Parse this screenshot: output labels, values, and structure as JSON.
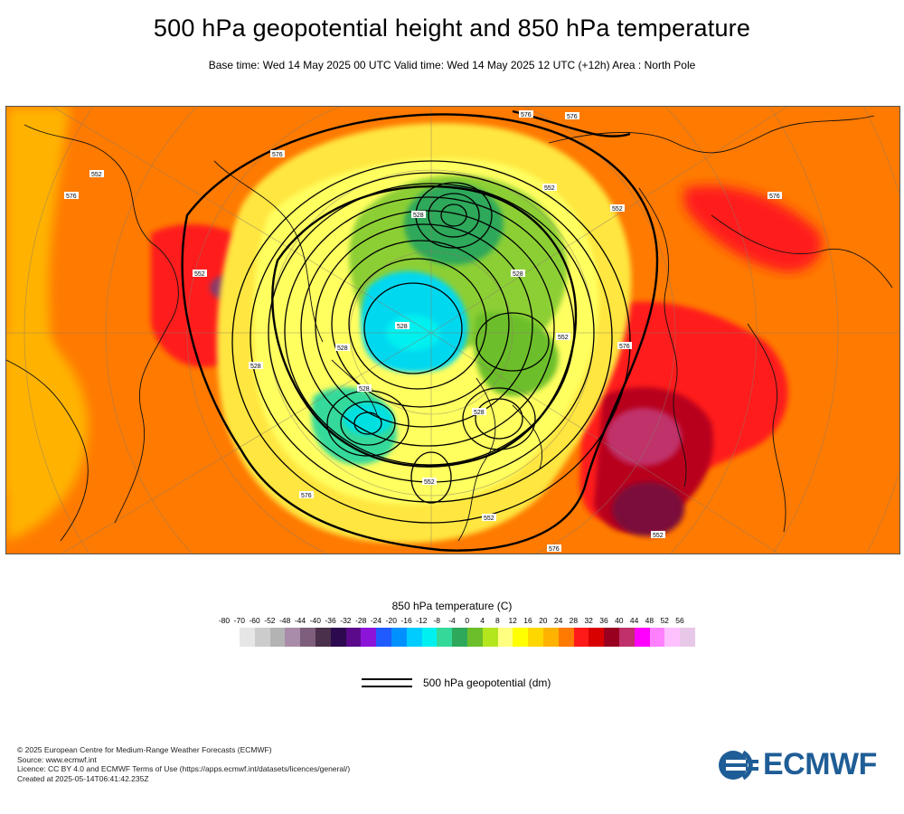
{
  "title": "500 hPa geopotential height and 850 hPa temperature",
  "subtitle": "Base time: Wed 14 May 2025 00 UTC Valid time: Wed 14 May 2025 12 UTC (+12h) Area : North Pole",
  "map": {
    "area": "North Pole",
    "contour_labels": [
      "576",
      "552",
      "528",
      "576",
      "552",
      "528",
      "576",
      "552",
      "528",
      "576",
      "552",
      "528",
      "576",
      "552",
      "528",
      "576",
      "552",
      "528",
      "576",
      "552",
      "528",
      "576",
      "552"
    ],
    "colors": {
      "warm_background": "#ff7a00",
      "hot": "#ff1a1a",
      "very_hot": "#b8001a",
      "extreme": "#c0006a",
      "mild": "#ffc000",
      "cool": "#ffff40",
      "cold_green": "#6cbf2a",
      "deep_green": "#2ea85a",
      "frigid_cyan": "#00c8e8"
    }
  },
  "legend": {
    "title": "850 hPa temperature (C)",
    "ticks": [
      "-80",
      "-70",
      "-60",
      "-52",
      "-48",
      "-44",
      "-40",
      "-36",
      "-32",
      "-28",
      "-24",
      "-20",
      "-16",
      "-12",
      "-8",
      "-4",
      "0",
      "4",
      "8",
      "12",
      "16",
      "20",
      "24",
      "28",
      "32",
      "36",
      "40",
      "44",
      "48",
      "52",
      "56"
    ],
    "colors": [
      "#e6e6e6",
      "#cccccc",
      "#b3b3b3",
      "#a98ca9",
      "#7d5f7d",
      "#4a304a",
      "#2d0a4f",
      "#5a0a8a",
      "#8c14d9",
      "#1f5bff",
      "#0091ff",
      "#00ccff",
      "#00f0f0",
      "#34d99a",
      "#2ea85a",
      "#6cbf2a",
      "#b4e61e",
      "#ffff80",
      "#ffff00",
      "#ffd700",
      "#ffb300",
      "#ff7a00",
      "#ff1a1a",
      "#d90000",
      "#990020",
      "#c0306a",
      "#ff00ff",
      "#ff80ff",
      "#ffc0ff",
      "#e8c8e8"
    ],
    "geopotential_label": "500 hPa geopotential (dm)"
  },
  "credits": {
    "line1": "© 2025 European Centre for Medium-Range Weather Forecasts (ECMWF)",
    "line2": "Source: www.ecmwf.int",
    "line3": "Licence: CC BY 4.0 and ECMWF Terms of Use (https://apps.ecmwf.int/datasets/licences/general/)",
    "line4": "Created at 2025-05-14T06:41:42.235Z"
  },
  "logo_text": "ECMWF"
}
